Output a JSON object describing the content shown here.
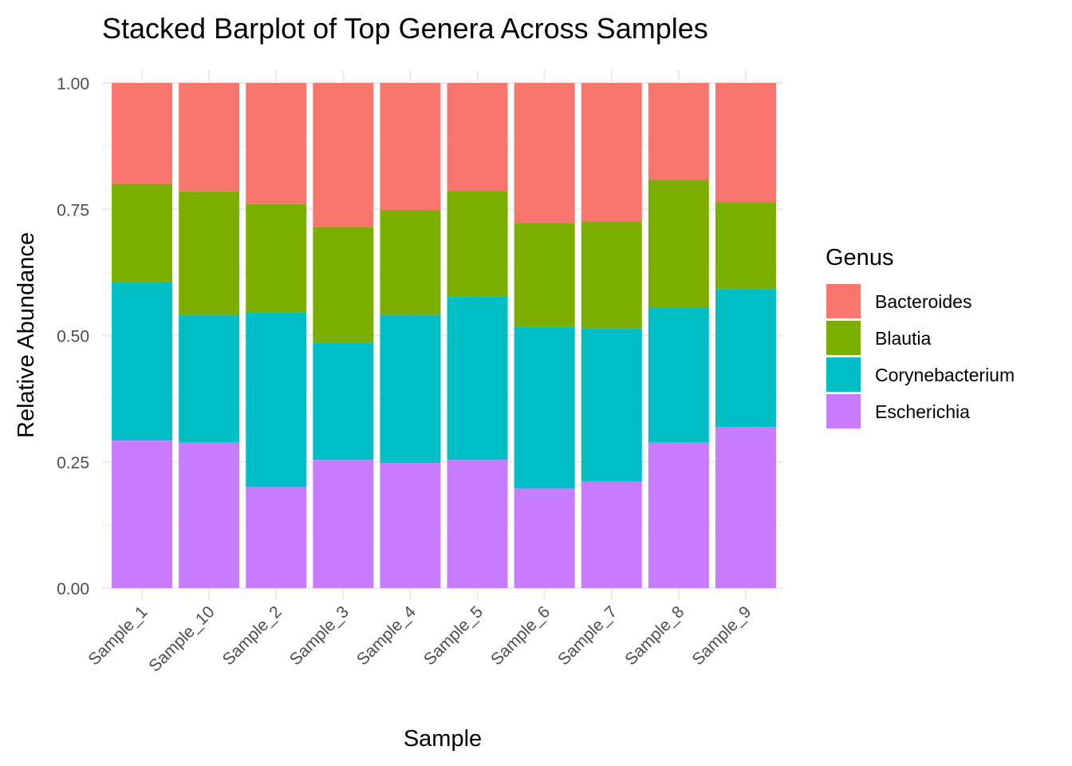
{
  "chart_data": {
    "type": "bar",
    "stacked": true,
    "title": "Stacked Barplot of Top Genera Across Samples",
    "xlabel": "Sample",
    "ylabel": "Relative Abundance",
    "ylim": [
      0,
      1
    ],
    "yticks": [
      "0.00",
      "0.25",
      "0.50",
      "0.75",
      "1.00"
    ],
    "grid": true,
    "legend_position": "right",
    "legend_title": "Genus",
    "categories": [
      "Sample_1",
      "Sample_10",
      "Sample_2",
      "Sample_3",
      "Sample_4",
      "Sample_5",
      "Sample_6",
      "Sample_7",
      "Sample_8",
      "Sample_9"
    ],
    "series": [
      {
        "name": "Escherichia",
        "color": "#C77CFF",
        "values": [
          0.292,
          0.288,
          0.2,
          0.254,
          0.248,
          0.254,
          0.197,
          0.211,
          0.288,
          0.319
        ]
      },
      {
        "name": "Corynebacterium",
        "color": "#00BFC4",
        "values": [
          0.314,
          0.253,
          0.346,
          0.232,
          0.293,
          0.324,
          0.32,
          0.303,
          0.268,
          0.273
        ]
      },
      {
        "name": "Blautia",
        "color": "#7CAE00",
        "values": [
          0.194,
          0.244,
          0.214,
          0.229,
          0.207,
          0.208,
          0.205,
          0.212,
          0.252,
          0.171
        ]
      },
      {
        "name": "Bacteroides",
        "color": "#F8766D",
        "values": [
          0.2,
          0.215,
          0.24,
          0.285,
          0.252,
          0.214,
          0.278,
          0.274,
          0.192,
          0.237
        ]
      }
    ],
    "legend_order": [
      "Bacteroides",
      "Blautia",
      "Corynebacterium",
      "Escherichia"
    ]
  }
}
